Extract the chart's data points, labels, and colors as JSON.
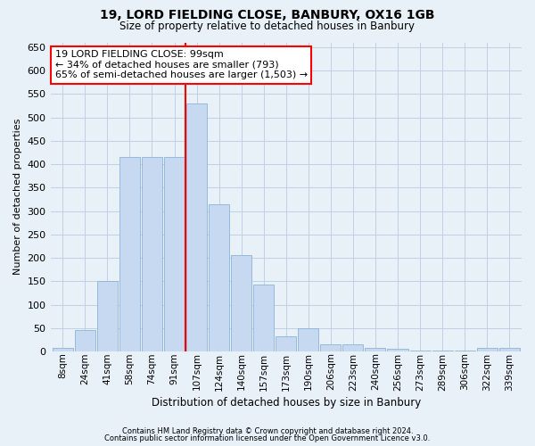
{
  "title": "19, LORD FIELDING CLOSE, BANBURY, OX16 1GB",
  "subtitle": "Size of property relative to detached houses in Banbury",
  "xlabel": "Distribution of detached houses by size in Banbury",
  "ylabel": "Number of detached properties",
  "categories": [
    "8sqm",
    "24sqm",
    "41sqm",
    "58sqm",
    "74sqm",
    "91sqm",
    "107sqm",
    "124sqm",
    "140sqm",
    "157sqm",
    "173sqm",
    "190sqm",
    "206sqm",
    "223sqm",
    "240sqm",
    "256sqm",
    "273sqm",
    "289sqm",
    "306sqm",
    "322sqm",
    "339sqm"
  ],
  "values": [
    8,
    45,
    150,
    415,
    415,
    415,
    530,
    315,
    205,
    143,
    32,
    50,
    15,
    15,
    8,
    5,
    2,
    2,
    2,
    7,
    7
  ],
  "bar_color": "#c6d9f1",
  "bar_edge_color": "#8ab4d8",
  "grid_color": "#c0d0e2",
  "background_color": "#e8f0f8",
  "vline_color": "red",
  "annotation_line1": "19 LORD FIELDING CLOSE: 99sqm",
  "annotation_line2": "← 34% of detached houses are smaller (793)",
  "annotation_line3": "65% of semi-detached houses are larger (1,503) →",
  "annotation_box_color": "white",
  "annotation_box_edge": "red",
  "footer_line1": "Contains HM Land Registry data © Crown copyright and database right 2024.",
  "footer_line2": "Contains public sector information licensed under the Open Government Licence v3.0.",
  "ylim": [
    0,
    660
  ],
  "yticks": [
    0,
    50,
    100,
    150,
    200,
    250,
    300,
    350,
    400,
    450,
    500,
    550,
    600,
    650
  ]
}
